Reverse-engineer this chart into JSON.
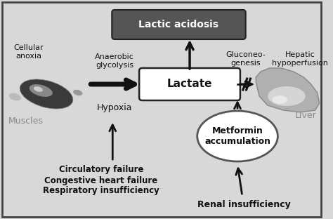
{
  "bg_color": "#d8d8d8",
  "border_color": "#444444",
  "fig_width": 4.74,
  "fig_height": 3.12,
  "dpi": 100,
  "texts": {
    "circulatory": "Circulatory failure\nCongestive heart failure\nRespiratory insufficiency",
    "renal": "Renal insufficiency",
    "muscles": "Muscles",
    "cellular_anoxia": "Cellular\nanoxia",
    "hypoxia": "Hypoxia",
    "anaerobic": "Anaerobic\nglycolysis",
    "metformin": "Metformin\naccumulation",
    "liver": "Liver",
    "lactate": "Lactate",
    "gluconeo": "Gluconeo-\ngenesis",
    "hepatic": "Hepatic\nhypoperfusion",
    "lactic": "Lactic acidosis"
  },
  "colors": {
    "box_lactate_fill": "#ffffff",
    "box_lactate_edge": "#222222",
    "box_lactic_fill": "#555555",
    "box_lactic_edge": "#222222",
    "ellipse_fill": "#ffffff",
    "ellipse_edge": "#555555",
    "arrow_color": "#111111",
    "text_dark": "#111111",
    "text_gray": "#888888",
    "text_white": "#ffffff",
    "text_bold_dark": "#111111"
  }
}
